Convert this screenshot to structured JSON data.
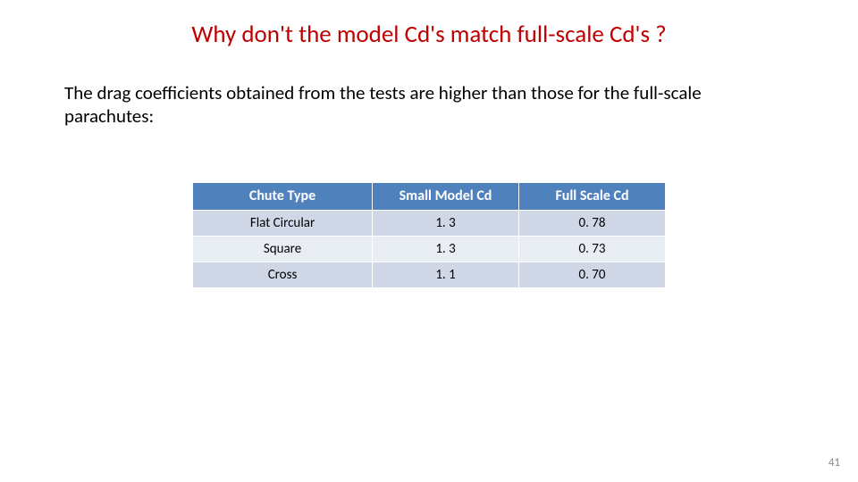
{
  "title": "Why don't the model Cd's match full-scale Cd's ?",
  "body": "The drag coefficients obtained from the tests are higher than those for the full-scale parachutes:",
  "table": {
    "type": "table",
    "header_bg": "#4f81bd",
    "header_fg": "#ffffff",
    "row_odd_bg": "#d0d8e8",
    "row_even_bg": "#e9edf4",
    "border_color": "#ffffff",
    "header_fontsize": 16,
    "cell_fontsize": 15,
    "columns": [
      "Chute Type",
      "Small Model Cd",
      "Full Scale Cd"
    ],
    "rows": [
      [
        "Flat Circular",
        "1. 3",
        "0. 78"
      ],
      [
        "Square",
        "1. 3",
        "0. 73"
      ],
      [
        "Cross",
        "1. 1",
        "0. 70"
      ]
    ],
    "col_widths_pct": [
      38,
      31,
      31
    ]
  },
  "page_number": "41",
  "colors": {
    "title": "#c00000",
    "body_text": "#000000",
    "background": "#ffffff",
    "page_num": "#8a8a8a"
  },
  "typography": {
    "title_fontsize": 27,
    "body_fontsize": 21,
    "page_num_fontsize": 13,
    "font_family": "Calibri"
  }
}
